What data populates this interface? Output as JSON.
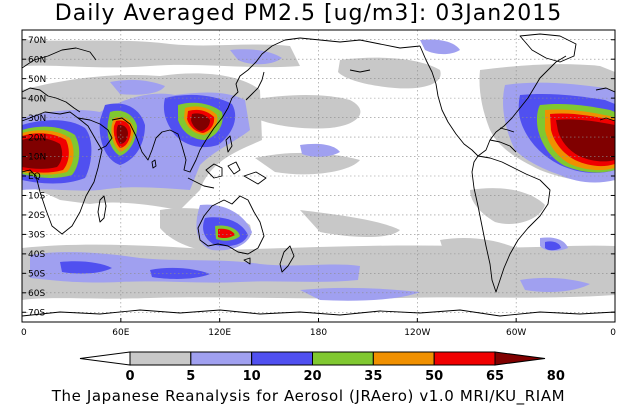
{
  "title": "Daily Averaged PM2.5 [ug/m3]: 03Jan2015",
  "credit": "The Japanese Reanalysis for Aerosol (JRAero) v1.0 MRI/KU_RIAM",
  "map": {
    "lat_ticks": [
      {
        "lat": 70,
        "label": "70N"
      },
      {
        "lat": 60,
        "label": "60N"
      },
      {
        "lat": 50,
        "label": "50N"
      },
      {
        "lat": 40,
        "label": "40N"
      },
      {
        "lat": 30,
        "label": "30N"
      },
      {
        "lat": 20,
        "label": "20N"
      },
      {
        "lat": 10,
        "label": "10N"
      },
      {
        "lat": 0,
        "label": "EQ"
      },
      {
        "lat": -10,
        "label": "10S"
      },
      {
        "lat": -20,
        "label": "20S"
      },
      {
        "lat": -30,
        "label": "30S"
      },
      {
        "lat": -40,
        "label": "40S"
      },
      {
        "lat": -50,
        "label": "50S"
      },
      {
        "lat": -60,
        "label": "60S"
      },
      {
        "lat": -70,
        "label": "70S"
      }
    ],
    "lon_ticks": [
      {
        "lon": 0,
        "label": "0"
      },
      {
        "lon": 60,
        "label": "60E"
      },
      {
        "lon": 120,
        "label": "120E"
      },
      {
        "lon": 180,
        "label": "180"
      },
      {
        "lon": 240,
        "label": "120W"
      },
      {
        "lon": 300,
        "label": "60W"
      },
      {
        "lon": 360,
        "label": "0"
      }
    ]
  },
  "colorbar": {
    "labels": [
      "0",
      "5",
      "10",
      "20",
      "35",
      "50",
      "65",
      "80"
    ],
    "colors": [
      "#ffffff",
      "#c8c8c8",
      "#a0a0f0",
      "#5050f0",
      "#80c830",
      "#f09000",
      "#f00000",
      "#800000"
    ]
  },
  "palette": {
    "gray": "#c8c8c8",
    "lavender": "#a0a0f0",
    "blue": "#5050f0",
    "green": "#80c830",
    "orange": "#f09000",
    "red": "#f00000",
    "maroon": "#800000",
    "coast": "#000000"
  }
}
